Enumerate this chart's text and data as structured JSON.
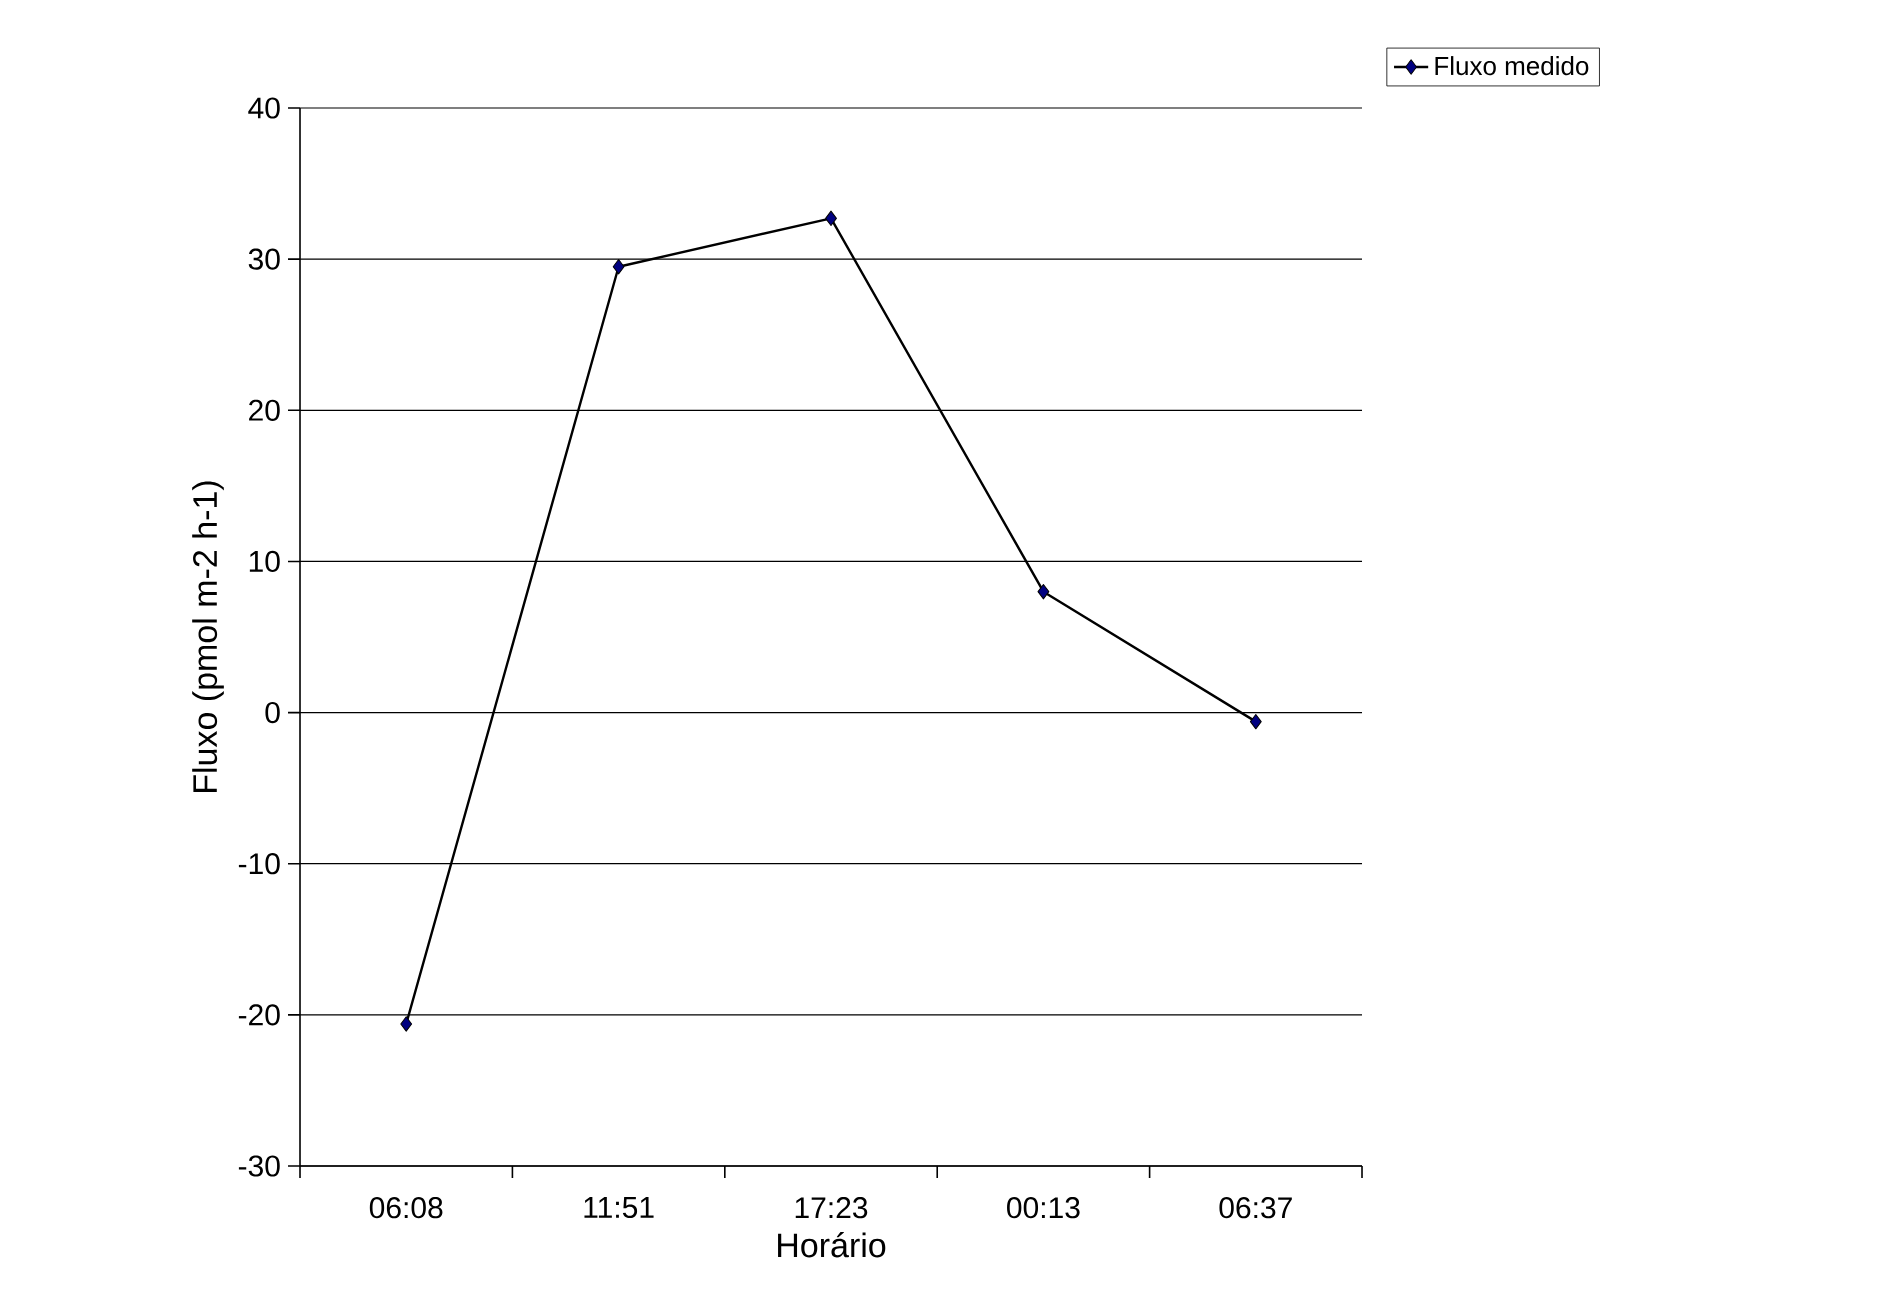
{
  "chart_data": {
    "type": "line",
    "xlabel": "Horário",
    "ylabel": "Fluxo (pmol m-2 h-1)",
    "categories": [
      "06:08",
      "11:51",
      "17:23",
      "00:13",
      "06:37"
    ],
    "series": [
      {
        "name": "Fluxo medido",
        "color": "#000080",
        "values": [
          -20.6,
          29.5,
          32.7,
          8.0,
          -0.6
        ]
      }
    ],
    "ylim": [
      -30,
      40
    ],
    "yticks": [
      -30,
      -20,
      -10,
      0,
      10,
      20,
      30,
      40
    ],
    "grid": "y",
    "legend": "top right",
    "marker": "diamond",
    "line_style": "solid"
  }
}
